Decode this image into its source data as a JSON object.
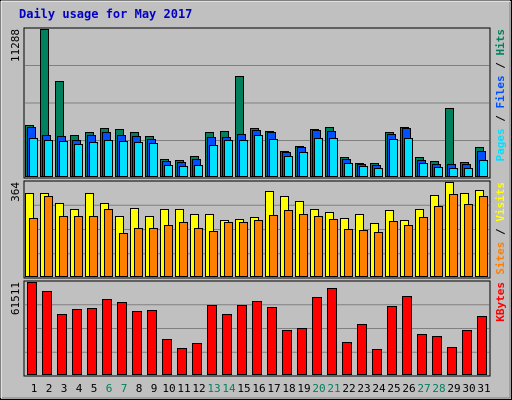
{
  "chart_data": {
    "type": "bar",
    "title": "Daily usage for May 2017",
    "categories": [
      "1",
      "2",
      "3",
      "4",
      "5",
      "6",
      "7",
      "8",
      "9",
      "10",
      "11",
      "12",
      "13",
      "14",
      "15",
      "16",
      "17",
      "18",
      "19",
      "20",
      "21",
      "22",
      "23",
      "24",
      "25",
      "26",
      "27",
      "28",
      "29",
      "30",
      "31"
    ],
    "weekend_days": [
      "6",
      "7",
      "13",
      "14",
      "20",
      "21",
      "27",
      "28"
    ],
    "panels": [
      {
        "id": "hits-panel",
        "ymax_label": "11288",
        "ymax": 11288,
        "legend": [
          {
            "text": "Pages",
            "color": "#00e0ff"
          },
          {
            "text": " / ",
            "color": "#000000"
          },
          {
            "text": "Files",
            "color": "#0050ff"
          },
          {
            "text": " / ",
            "color": "#000000"
          },
          {
            "text": "Hits",
            "color": "#00805c"
          }
        ],
        "series": [
          {
            "name": "Hits",
            "color": "#00805c",
            "values": [
              3950,
              11288,
              7300,
              3200,
              3400,
              3700,
              3650,
              3450,
              3100,
              1350,
              1300,
              1600,
              3450,
              3500,
              7700,
              3700,
              3500,
              2000,
              2400,
              3650,
              3800,
              1500,
              1100,
              1050,
              3400,
              3800,
              1500,
              1200,
              5300,
              1150,
              2300
            ]
          },
          {
            "name": "Files",
            "color": "#0050ff",
            "values": [
              3800,
              3200,
              3150,
              2850,
              3200,
              3400,
              3200,
              3100,
              2900,
              1200,
              1150,
              1350,
              3050,
              3050,
              3250,
              3600,
              3400,
              1900,
              2300,
              3550,
              3500,
              1400,
              1000,
              900,
              3250,
              3700,
              1300,
              1000,
              1000,
              1000,
              1950
            ]
          },
          {
            "name": "Pages",
            "color": "#00e0ff",
            "values": [
              3000,
              2850,
              2750,
              2500,
              2650,
              2850,
              2750,
              2650,
              2600,
              950,
              850,
              950,
              2450,
              2800,
              2850,
              3200,
              2900,
              1600,
              1900,
              2950,
              3000,
              1050,
              850,
              700,
              2900,
              2950,
              1100,
              750,
              700,
              700,
              1300
            ]
          }
        ]
      },
      {
        "id": "visits-panel",
        "ymax_label": "364",
        "ymax": 364,
        "legend": [
          {
            "text": "Sites",
            "color": "#ff8000"
          },
          {
            "text": " / ",
            "color": "#000000"
          },
          {
            "text": "Visits",
            "color": "#ffff00"
          }
        ],
        "series": [
          {
            "name": "Visits",
            "color": "#ffff00",
            "values": [
              320,
              322,
              285,
              262,
              322,
              282,
              235,
              265,
              235,
              262,
              262,
              240,
              240,
              220,
              222,
              230,
              330,
              310,
              290,
              262,
              250,
              225,
              240,
              205,
              255,
              220,
              262,
              315,
              364,
              322,
              335
            ]
          },
          {
            "name": "Sites",
            "color": "#ff8000",
            "values": [
              225,
              310,
              232,
              235,
              232,
              262,
              170,
              188,
              188,
              200,
              212,
              186,
              178,
              212,
              210,
              218,
              238,
              255,
              242,
              232,
              222,
              182,
              180,
              172,
              215,
              200,
              228,
              272,
              318,
              278,
              310
            ]
          }
        ]
      },
      {
        "id": "kbytes-panel",
        "ymax_label": "61511",
        "ymax": 61511,
        "legend": [
          {
            "text": "KBytes",
            "color": "#ff0000"
          }
        ],
        "series": [
          {
            "name": "KBytes",
            "color": "#ff0000",
            "values": [
              61511,
              55500,
              40500,
              43500,
              44000,
              50000,
              48000,
              42000,
              43000,
              24000,
              18000,
              21000,
              46500,
              40500,
              46500,
              49000,
              44700,
              30000,
              31000,
              51500,
              57500,
              22000,
              33500,
              17500,
              45500,
              52500,
              27000,
              26000,
              18500,
              30000,
              39000
            ]
          }
        ]
      }
    ]
  }
}
